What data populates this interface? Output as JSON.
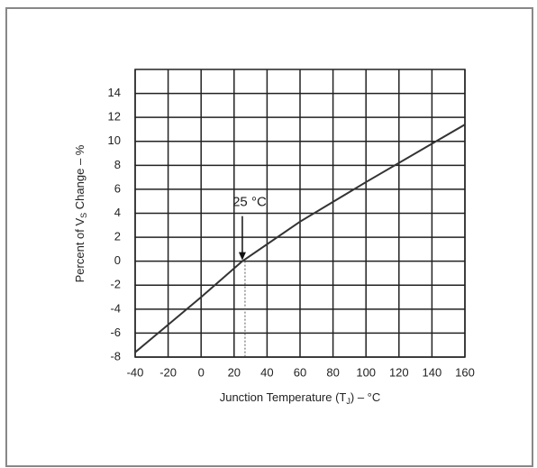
{
  "chart_data": {
    "type": "line",
    "x": [
      -40,
      -20,
      0,
      25,
      60,
      100,
      140,
      160
    ],
    "series": [
      {
        "name": "Percent of VS Change",
        "color": "#333333",
        "values": [
          -7.6,
          -5.3,
          -3,
          0,
          3.3,
          6.6,
          9.8,
          11.4
        ]
      }
    ],
    "xlim": [
      -40,
      160
    ],
    "xticks": [
      -40,
      -20,
      0,
      20,
      40,
      60,
      80,
      100,
      120,
      140,
      160
    ],
    "ylim": [
      -8,
      16
    ],
    "yticks": [
      -8,
      -6,
      -4,
      -2,
      0,
      2,
      4,
      6,
      8,
      10,
      12,
      14
    ],
    "grid": true,
    "ylabel": {
      "main": "Percent of V",
      "sub": "S",
      "rest": " Change – %"
    },
    "xlabel": {
      "main": "Junction Temperature (T",
      "sub": "J",
      "rest": ") – °C"
    },
    "annotation": {
      "text": "25 °C",
      "x": 25,
      "y": 0
    }
  }
}
